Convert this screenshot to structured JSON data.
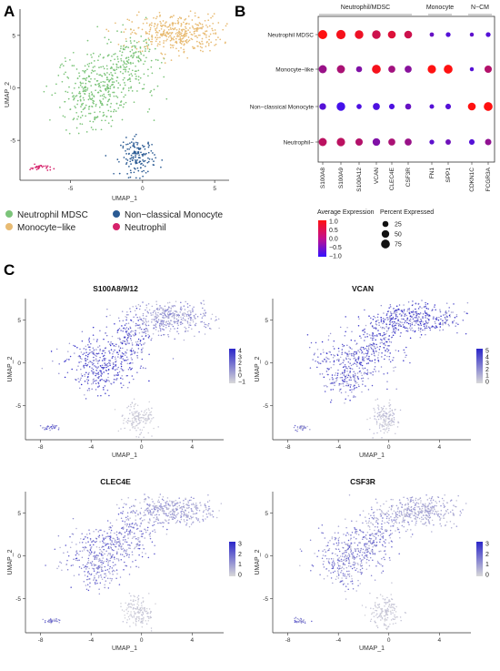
{
  "panels": {
    "a": "A",
    "b": "B",
    "c": "C"
  },
  "colors": {
    "neutrophil_mdsc": "#7cc47a",
    "monocyte_like": "#e8bb73",
    "nonclassical_monocyte": "#2a5a93",
    "neutrophil": "#d6226b",
    "expr_low": "#d8d8d8",
    "expr_high": "#2b26c9",
    "dot_low": "#3311ff",
    "dot_high": "#ff1111"
  },
  "chart_data": [
    {
      "type": "scatter",
      "panel": "A",
      "xlabel": "UMAP_1",
      "ylabel": "UMAP_2",
      "xticks": [
        -5,
        0,
        5
      ],
      "yticks": [
        -5,
        0,
        5
      ],
      "xlim": [
        -8.5,
        6
      ],
      "ylim": [
        -8.8,
        7.5
      ],
      "legend_placement": "bottom",
      "legend": [
        "Neutrophil MDSC",
        "Monocyte−like",
        "Non−classical Monocyte",
        "Neutrophil"
      ],
      "clusters": [
        {
          "name": "Neutrophil MDSC",
          "color": "#7cc47a",
          "center": [
            -2.5,
            1.5
          ],
          "spread": [
            2.0,
            2.8
          ]
        },
        {
          "name": "Monocyte−like",
          "color": "#e8bb73",
          "center": [
            2.3,
            5.0
          ],
          "spread": [
            2.3,
            1.4
          ]
        },
        {
          "name": "Non−classical Monocyte",
          "color": "#2a5a93",
          "center": [
            -0.3,
            -6.6
          ],
          "spread": [
            0.8,
            1.2
          ]
        },
        {
          "name": "Neutrophil",
          "color": "#d6226b",
          "center": [
            -7.0,
            -7.6
          ],
          "spread": [
            0.5,
            0.25
          ]
        }
      ]
    },
    {
      "type": "dot",
      "panel": "B",
      "groups": [
        {
          "label": "Neutrophil/MDSC",
          "genes": [
            "S100A8",
            "S100A9",
            "S100A12",
            "VCAN",
            "CLEC4E",
            "CSF3R"
          ]
        },
        {
          "label": "Monocyte",
          "genes": [
            "FN1",
            "SPP1"
          ]
        },
        {
          "label": "N−CM",
          "genes": [
            "CDKN1C",
            "FCGR3A"
          ]
        }
      ],
      "rows": [
        "Neutrophil MDSC",
        "Monocyte−like",
        "Non−classical Monocyte",
        "Neutrophil−"
      ],
      "genes": [
        "S100A8",
        "S100A9",
        "S100A12",
        "VCAN",
        "CLEC4E",
        "CSF3R",
        "FN1",
        "SPP1",
        "CDKN1C",
        "FCGR3A"
      ],
      "avg_expression": [
        [
          1.2,
          1.1,
          1.0,
          0.6,
          0.8,
          0.6,
          -0.6,
          -0.8,
          -0.7,
          -0.8
        ],
        [
          0.0,
          0.2,
          -0.3,
          1.1,
          0.1,
          -0.2,
          1.2,
          1.2,
          -0.8,
          0.3
        ],
        [
          -0.8,
          -1.0,
          -0.9,
          -0.9,
          -0.9,
          -0.6,
          -0.8,
          -0.8,
          1.2,
          1.2
        ],
        [
          0.4,
          0.4,
          0.3,
          -0.3,
          0.2,
          0.0,
          -0.7,
          -0.5,
          -0.8,
          -0.1
        ]
      ],
      "pct_expressed": [
        [
          80,
          85,
          70,
          70,
          55,
          55,
          8,
          12,
          6,
          12
        ],
        [
          60,
          60,
          25,
          75,
          40,
          40,
          65,
          75,
          6,
          45
        ],
        [
          35,
          70,
          15,
          40,
          20,
          25,
          10,
          20,
          55,
          75
        ],
        [
          60,
          65,
          45,
          50,
          40,
          40,
          12,
          18,
          20,
          30
        ]
      ],
      "color_legend_title": "Average Expression",
      "color_ticks": [
        "1.0",
        "0.5",
        "0.0",
        "−0.5",
        "−1.0"
      ],
      "size_legend_title": "Percent Expressed",
      "size_ticks": [
        "25",
        "50",
        "75"
      ]
    },
    {
      "type": "scatter",
      "panel": "C",
      "title": "S100A8/9/12",
      "xlabel": "UMAP_1",
      "ylabel": "UMAP_2",
      "xticks": [
        -8,
        -4,
        0,
        4
      ],
      "yticks": [
        -5,
        0,
        5
      ],
      "colorbar_ticks": [
        "4",
        "3",
        "2",
        "1",
        "0",
        "−1"
      ],
      "level": {
        "neutrophil_mdsc": 0.75,
        "monocyte_like": 0.4,
        "nonclassical_monocyte": 0.1,
        "neutrophil": 0.7
      }
    },
    {
      "type": "scatter",
      "panel": "C",
      "title": "VCAN",
      "xlabel": "UMAP_1",
      "ylabel": "UMAP_2",
      "xticks": [
        -8,
        -4,
        0,
        4
      ],
      "yticks": [
        -5,
        0,
        5
      ],
      "colorbar_ticks": [
        "5",
        "4",
        "3",
        "2",
        "1",
        "0"
      ],
      "level": {
        "neutrophil_mdsc": 0.7,
        "monocyte_like": 0.75,
        "nonclassical_monocyte": 0.15,
        "neutrophil": 0.5
      }
    },
    {
      "type": "scatter",
      "panel": "C",
      "title": "CLEC4E",
      "xlabel": "UMAP_1",
      "ylabel": "UMAP_2",
      "xticks": [
        -8,
        -4,
        0,
        4
      ],
      "yticks": [
        -5,
        0,
        5
      ],
      "colorbar_ticks": [
        "3",
        "2",
        "1",
        "0"
      ],
      "level": {
        "neutrophil_mdsc": 0.55,
        "monocyte_like": 0.35,
        "nonclassical_monocyte": 0.1,
        "neutrophil": 0.5
      }
    },
    {
      "type": "scatter",
      "panel": "C",
      "title": "CSF3R",
      "xlabel": "UMAP_1",
      "ylabel": "UMAP_2",
      "xticks": [
        -8,
        -4,
        0,
        4
      ],
      "yticks": [
        -5,
        0,
        5
      ],
      "colorbar_ticks": [
        "3",
        "2",
        "1",
        "0"
      ],
      "level": {
        "neutrophil_mdsc": 0.5,
        "monocyte_like": 0.3,
        "nonclassical_monocyte": 0.1,
        "neutrophil": 0.5
      }
    }
  ]
}
